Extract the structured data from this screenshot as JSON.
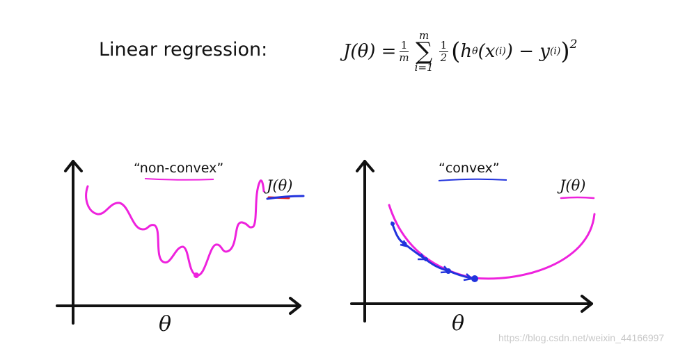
{
  "header": {
    "title": "Linear regression:",
    "formula": {
      "lhs": "J(θ) =",
      "frac1_num": "1",
      "frac1_den": "m",
      "sum_top": "m",
      "sum_symbol": "∑",
      "sum_bottom": "i=1",
      "frac2_num": "1",
      "frac2_den": "2",
      "body_open": "(",
      "h": "h",
      "h_sub": "θ",
      "x": "(x",
      "x_sup": "(i)",
      "minus_y": ") − y",
      "y_sup": "(i)",
      "body_close": ")",
      "power": "2"
    }
  },
  "left_plot": {
    "label": "“non-convex”",
    "curve_label": "J(θ)",
    "x_label": "θ"
  },
  "right_plot": {
    "label": "“convex”",
    "curve_label": "J(θ)",
    "x_label": "θ"
  },
  "watermark": "https://blog.csdn.net/weixin_44166997",
  "colors": {
    "curve": "#ee22dd",
    "blue_path": "#2233dd",
    "axis": "#111111",
    "underline_red": "#e52222"
  }
}
